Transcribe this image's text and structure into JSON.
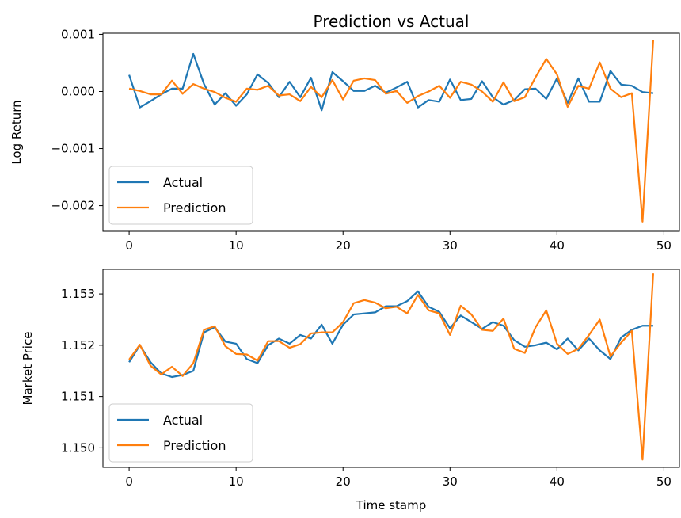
{
  "chart_data": [
    {
      "type": "line",
      "title": "Prediction vs Actual",
      "xlabel": "",
      "ylabel": "Log Return",
      "xlim": [
        -2.45,
        51.45
      ],
      "ylim": [
        -0.00245,
        0.00102
      ],
      "xticks": [
        0,
        10,
        20,
        30,
        40,
        50
      ],
      "xtick_labels": [
        "0",
        "10",
        "20",
        "30",
        "40",
        "50"
      ],
      "yticks": [
        -0.002,
        -0.001,
        0.0,
        0.001
      ],
      "ytick_labels": [
        "−0.002",
        "−0.001",
        "0.000",
        "0.001"
      ],
      "legend": "lower-left",
      "grid": false,
      "x": [
        0,
        1,
        2,
        3,
        4,
        5,
        6,
        7,
        8,
        9,
        10,
        11,
        12,
        13,
        14,
        15,
        16,
        17,
        18,
        19,
        20,
        21,
        22,
        23,
        24,
        25,
        26,
        27,
        28,
        29,
        30,
        31,
        32,
        33,
        34,
        35,
        36,
        37,
        38,
        39,
        40,
        41,
        42,
        43,
        44,
        45,
        46,
        47,
        48,
        49
      ],
      "series": [
        {
          "name": "Actual",
          "color": "#1f77b4",
          "values": [
            0.00029,
            -0.00028,
            -0.00017,
            -5e-05,
            5e-05,
            5e-05,
            0.00066,
            0.00013,
            -0.00023,
            -3e-05,
            -0.00025,
            -5e-05,
            0.0003,
            0.00015,
            -0.0001,
            0.00017,
            -0.0001,
            0.00024,
            -0.00033,
            0.00034,
            0.00018,
            1e-05,
            1e-05,
            0.0001,
            -2e-05,
            7e-05,
            0.00017,
            -0.00028,
            -0.00015,
            -0.00018,
            0.00021,
            -0.00015,
            -0.00013,
            0.00018,
            -0.0001,
            -0.00023,
            -0.00015,
            4e-05,
            5e-05,
            -0.00013,
            0.00023,
            -0.0002,
            0.00023,
            -0.00018,
            -0.00018,
            0.00036,
            0.00012,
            0.0001,
            -1e-05,
            -3e-05
          ]
        },
        {
          "name": "Prediction",
          "color": "#ff7f0e",
          "values": [
            5e-05,
            1e-05,
            -5e-05,
            -5e-05,
            0.00019,
            -4e-05,
            0.00013,
            5e-05,
            -1e-05,
            -0.00011,
            -0.00018,
            5e-05,
            3e-05,
            0.0001,
            -7e-05,
            -5e-05,
            -0.00017,
            8e-05,
            -0.0001,
            0.0002,
            -0.00014,
            0.00019,
            0.00023,
            0.0002,
            -4e-05,
            1e-05,
            -0.0002,
            -8e-05,
            0.0,
            0.0001,
            -0.00011,
            0.00017,
            0.00012,
            0.0,
            -0.00018,
            0.00016,
            -0.00017,
            -0.0001,
            0.00025,
            0.00057,
            0.0003,
            -0.00027,
            0.0001,
            5e-05,
            0.00051,
            5e-05,
            -0.0001,
            -3e-05,
            -0.00228,
            0.0009
          ]
        }
      ]
    },
    {
      "type": "line",
      "title": "",
      "xlabel": "Time stamp",
      "ylabel": "Market Price",
      "xlim": [
        -2.45,
        51.45
      ],
      "ylim": [
        1.14962,
        1.15348
      ],
      "xticks": [
        0,
        10,
        20,
        30,
        40,
        50
      ],
      "xtick_labels": [
        "0",
        "10",
        "20",
        "30",
        "40",
        "50"
      ],
      "yticks": [
        1.15,
        1.151,
        1.152,
        1.153
      ],
      "ytick_labels": [
        "1.150",
        "1.151",
        "1.152",
        "1.153"
      ],
      "legend": "lower-left",
      "grid": false,
      "x": [
        0,
        1,
        2,
        3,
        4,
        5,
        6,
        7,
        8,
        9,
        10,
        11,
        12,
        13,
        14,
        15,
        16,
        17,
        18,
        19,
        20,
        21,
        22,
        23,
        24,
        25,
        26,
        27,
        28,
        29,
        30,
        31,
        32,
        33,
        34,
        35,
        36,
        37,
        38,
        39,
        40,
        41,
        42,
        43,
        44,
        45,
        46,
        47,
        48,
        49
      ],
      "series": [
        {
          "name": "Actual",
          "color": "#1f77b4",
          "values": [
            1.15167,
            1.152,
            1.15167,
            1.15145,
            1.15138,
            1.15142,
            1.1515,
            1.15225,
            1.15235,
            1.15207,
            1.15203,
            1.15173,
            1.15165,
            1.152,
            1.15213,
            1.15203,
            1.1522,
            1.15213,
            1.1524,
            1.15203,
            1.1524,
            1.1526,
            1.15262,
            1.15264,
            1.15276,
            1.15276,
            1.15286,
            1.15305,
            1.15275,
            1.15265,
            1.15233,
            1.15258,
            1.15245,
            1.15232,
            1.15245,
            1.15238,
            1.1521,
            1.15197,
            1.152,
            1.15205,
            1.15192,
            1.15213,
            1.1519,
            1.15213,
            1.1519,
            1.15173,
            1.15215,
            1.1523,
            1.15238,
            1.15238
          ]
        },
        {
          "name": "Prediction",
          "color": "#ff7f0e",
          "values": [
            1.15172,
            1.15201,
            1.1516,
            1.15143,
            1.15158,
            1.1514,
            1.15165,
            1.1523,
            1.15237,
            1.15198,
            1.15183,
            1.15182,
            1.1517,
            1.15208,
            1.15208,
            1.15195,
            1.15202,
            1.15223,
            1.15225,
            1.15225,
            1.15245,
            1.15282,
            1.15288,
            1.15283,
            1.15272,
            1.15275,
            1.15262,
            1.15298,
            1.15268,
            1.15262,
            1.1522,
            1.15277,
            1.1526,
            1.1523,
            1.15228,
            1.15252,
            1.15193,
            1.15185,
            1.15235,
            1.15268,
            1.15203,
            1.15183,
            1.15193,
            1.1522,
            1.1525,
            1.15178,
            1.15205,
            1.15228,
            1.14977,
            1.1534
          ]
        }
      ]
    }
  ]
}
